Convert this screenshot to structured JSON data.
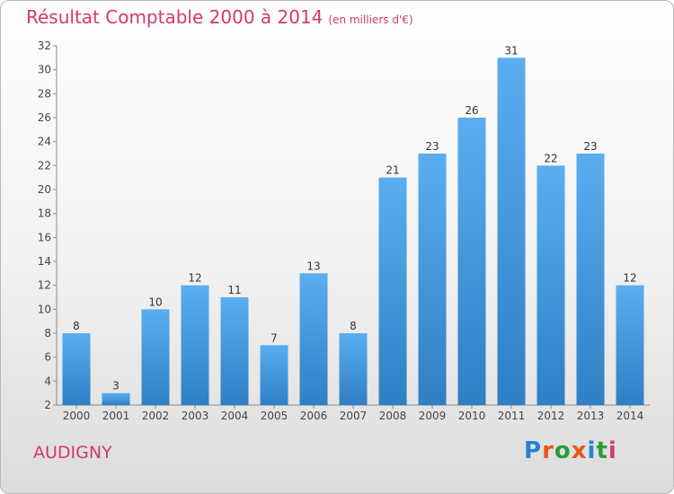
{
  "chart_data": {
    "type": "bar",
    "title": "Résultat Comptable 2000 à 2014",
    "subtitle": "(en milliers d'€)",
    "categories": [
      "2000",
      "2001",
      "2002",
      "2003",
      "2004",
      "2005",
      "2006",
      "2007",
      "2008",
      "2009",
      "2010",
      "2011",
      "2012",
      "2013",
      "2014"
    ],
    "values": [
      8,
      3,
      10,
      12,
      11,
      7,
      13,
      8,
      21,
      23,
      26,
      31,
      22,
      23,
      12
    ],
    "ylim": [
      2,
      32
    ],
    "yticks": [
      2,
      4,
      6,
      8,
      10,
      12,
      14,
      16,
      18,
      20,
      22,
      24,
      26,
      28,
      30,
      32
    ],
    "xlabel": "",
    "ylabel": "",
    "grid": false,
    "bar_color": "#3d8fd6"
  },
  "commune": "AUDIGNY",
  "logo": {
    "letters": [
      "P",
      "r",
      "o",
      "x",
      "i",
      "t",
      "i"
    ],
    "colors": [
      "#2a7fd4",
      "#e8551f",
      "#2a9d3a",
      "#e8551f",
      "#2a7fd4",
      "#2a9d3a",
      "#d4386f"
    ]
  }
}
